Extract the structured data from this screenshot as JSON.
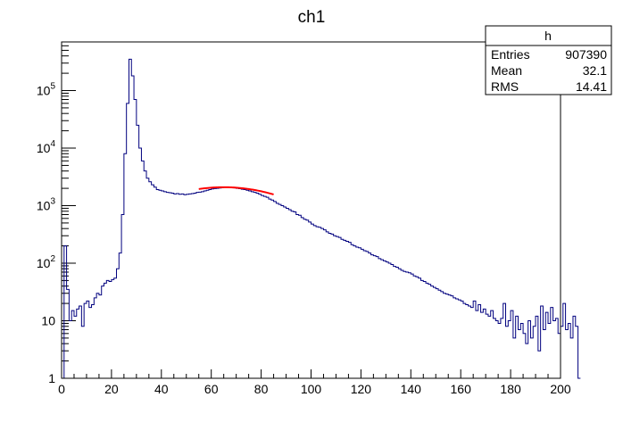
{
  "chart_data": {
    "type": "histogram",
    "title": "ch1",
    "xlabel": "",
    "ylabel": "",
    "xlim": [
      0,
      200
    ],
    "ylim": [
      1,
      700000
    ],
    "y_scale": "log",
    "grid": false,
    "bin_width": 1,
    "x_ticks": [
      0,
      20,
      40,
      60,
      80,
      100,
      120,
      140,
      160,
      180,
      200
    ],
    "y_ticks": [
      {
        "value": 1,
        "base": "1",
        "exp": ""
      },
      {
        "value": 10,
        "base": "10",
        "exp": ""
      },
      {
        "value": 100,
        "base": "10",
        "exp": "2"
      },
      {
        "value": 1000,
        "base": "10",
        "exp": "3"
      },
      {
        "value": 10000,
        "base": "10",
        "exp": "4"
      },
      {
        "value": 100000,
        "base": "10",
        "exp": "5"
      }
    ],
    "series": [
      {
        "values": [
          1,
          200,
          35,
          10,
          15,
          12,
          16,
          18,
          8,
          20,
          22,
          17,
          19,
          25,
          30,
          28,
          40,
          45,
          50,
          48,
          52,
          55,
          80,
          150,
          700,
          8000,
          60000,
          350000,
          180000,
          70000,
          25000,
          10000,
          6000,
          4000,
          3000,
          2600,
          2300,
          2100,
          1900,
          1850,
          1800,
          1750,
          1700,
          1680,
          1650,
          1600,
          1620,
          1580,
          1600,
          1550,
          1580,
          1600,
          1620,
          1650,
          1700,
          1720,
          1750,
          1800,
          1850,
          1900,
          1950,
          1980,
          2000,
          2020,
          2050,
          2080,
          2100,
          2080,
          2050,
          2030,
          2000,
          1970,
          1930,
          1900,
          1850,
          1800,
          1750,
          1700,
          1650,
          1580,
          1500,
          1450,
          1400,
          1300,
          1250,
          1180,
          1100,
          1050,
          1000,
          950,
          900,
          850,
          800,
          780,
          700,
          680,
          620,
          580,
          560,
          520,
          480,
          450,
          430,
          420,
          400,
          380,
          350,
          330,
          320,
          300,
          290,
          280,
          260,
          250,
          240,
          230,
          210,
          200,
          190,
          185,
          175,
          165,
          160,
          150,
          140,
          135,
          130,
          120,
          115,
          110,
          105,
          100,
          95,
          88,
          85,
          80,
          75,
          72,
          70,
          68,
          65,
          60,
          58,
          55,
          50,
          48,
          45,
          43,
          40,
          38,
          36,
          34,
          32,
          30,
          29,
          28,
          27,
          25,
          24,
          23,
          22,
          20,
          19,
          18,
          17,
          22,
          15,
          19,
          14,
          16,
          13,
          12,
          15,
          11,
          10,
          9,
          11,
          20,
          8,
          10,
          15,
          5,
          12,
          7,
          9,
          6,
          4,
          10,
          5,
          8,
          12,
          3,
          18,
          7,
          14,
          9,
          17,
          10,
          11,
          6,
          8,
          20,
          7,
          9,
          5,
          12,
          8,
          1
        ],
        "color": "#00007f"
      }
    ],
    "fit": {
      "x_range": [
        55,
        85
      ],
      "peak_x": 65,
      "peak_value": 2090,
      "sigma": 26.3,
      "color": "#ff0000"
    }
  },
  "stats_box": {
    "name": "h",
    "rows": [
      {
        "label": "Entries",
        "value": "907390"
      },
      {
        "label": "Mean",
        "value": "32.1"
      },
      {
        "label": "RMS",
        "value": "14.41"
      }
    ]
  }
}
